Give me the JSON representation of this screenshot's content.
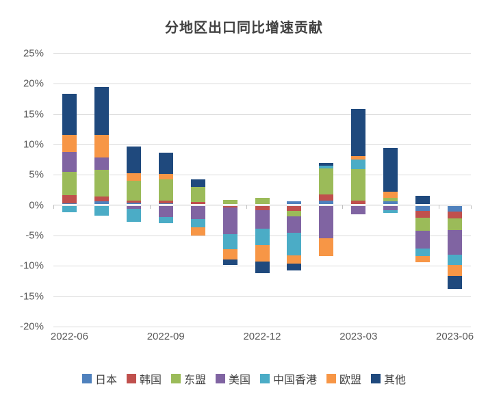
{
  "chart_data": {
    "type": "bar",
    "stacked": true,
    "title": "分地区出口同比增速贡献",
    "categories": [
      "2022-06",
      "2022-07",
      "2022-08",
      "2022-09",
      "2022-10",
      "2022-11",
      "2022-12",
      "2023-01",
      "2023-02",
      "2023-03",
      "2023-04",
      "2023-05",
      "2023-06"
    ],
    "x_axis_tick_labels": [
      "2022-06",
      "2022-09",
      "2022-12",
      "2023-03",
      "2023-06"
    ],
    "y_axis": {
      "min": -20,
      "max": 25,
      "step": 5,
      "unit": "%",
      "tick_labels": [
        "25%",
        "20%",
        "15%",
        "10%",
        "5%",
        "0%",
        "-5%",
        "-10%",
        "-15%",
        "-20%"
      ]
    },
    "grid": true,
    "legend_position": "bottom",
    "series": [
      {
        "name": "日本",
        "color": "#4F81BD",
        "values": [
          0.3,
          0.6,
          0.4,
          0.3,
          0.1,
          0.0,
          0.0,
          0.6,
          0.7,
          0.0,
          0.6,
          -0.9,
          -1.0
        ]
      },
      {
        "name": "韩国",
        "color": "#C0504D",
        "values": [
          1.4,
          0.8,
          0.4,
          0.4,
          0.4,
          -0.4,
          -0.8,
          -0.9,
          1.1,
          0.7,
          0.0,
          -1.2,
          -1.2
        ]
      },
      {
        "name": "东盟",
        "color": "#9BBB59",
        "values": [
          3.8,
          4.4,
          3.2,
          3.5,
          2.5,
          0.9,
          1.2,
          -0.9,
          4.2,
          5.2,
          0.6,
          -2.1,
          -1.9
        ]
      },
      {
        "name": "美国",
        "color": "#8064A2",
        "values": [
          3.3,
          2.1,
          -0.6,
          -2.0,
          -2.3,
          -4.4,
          -3.1,
          -2.7,
          -5.4,
          -1.5,
          -0.8,
          -2.9,
          -4.1
        ]
      },
      {
        "name": "中国香港",
        "color": "#4BACC6",
        "values": [
          -1.2,
          -1.7,
          -2.1,
          -1.0,
          -1.4,
          -2.5,
          -2.7,
          -3.8,
          0.5,
          1.6,
          -0.5,
          -1.3,
          -1.6
        ]
      },
      {
        "name": "欧盟",
        "color": "#F79646",
        "values": [
          2.8,
          3.7,
          1.3,
          1.0,
          -1.3,
          -1.6,
          -2.7,
          -1.3,
          -3.0,
          0.6,
          1.0,
          -1.0,
          -1.9
        ]
      },
      {
        "name": "其他",
        "color": "#1F497D",
        "values": [
          6.8,
          7.9,
          4.4,
          3.4,
          1.3,
          -0.9,
          -1.9,
          -1.1,
          0.5,
          7.8,
          7.2,
          1.5,
          -2.1
        ]
      }
    ]
  },
  "colors": {
    "background": "#ffffff",
    "gridline": "#d9d9d9",
    "zero_axis": "#c6c6c6",
    "title_text": "#404040",
    "tick_text": "#595959",
    "legend_text": "#404040"
  }
}
